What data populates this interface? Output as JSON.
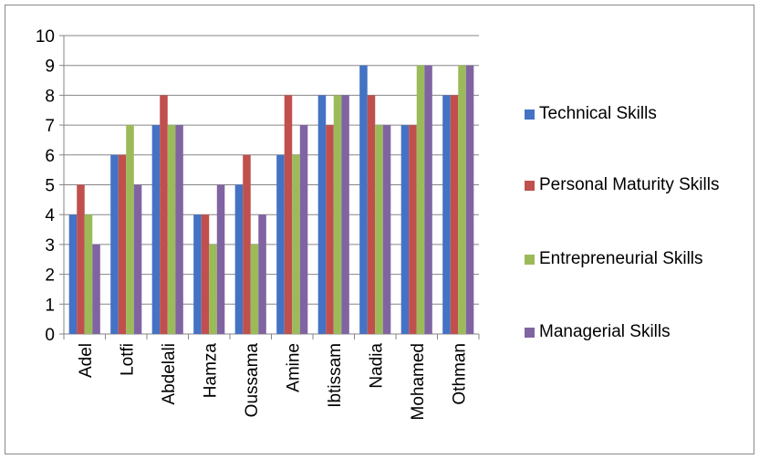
{
  "chart_data": {
    "type": "bar",
    "categories": [
      "Adel",
      "Lotfi",
      "Abdelali",
      "Hamza",
      "Oussama",
      "Amine",
      "Ibtissam",
      "Nadia",
      "Mohamed",
      "Othman"
    ],
    "series": [
      {
        "name": "Technical Skills",
        "color": "#4472c4",
        "values": [
          4,
          6,
          7,
          4,
          5,
          6,
          8,
          9,
          7,
          8
        ]
      },
      {
        "name": "Personal Maturity Skills",
        "color": "#c0504d",
        "values": [
          5,
          6,
          8,
          4,
          6,
          8,
          7,
          8,
          7,
          8
        ]
      },
      {
        "name": "Entrepreneurial Skills",
        "color": "#9bbb59",
        "values": [
          4,
          7,
          7,
          3,
          3,
          6,
          8,
          7,
          9,
          9
        ]
      },
      {
        "name": "Managerial Skills",
        "color": "#8064a2",
        "values": [
          3,
          5,
          7,
          5,
          4,
          7,
          8,
          7,
          9,
          9
        ]
      }
    ],
    "ylim": [
      0,
      10
    ],
    "yticks": [
      0,
      1,
      2,
      3,
      4,
      5,
      6,
      7,
      8,
      9,
      10
    ],
    "grid": true,
    "legend": "right"
  }
}
